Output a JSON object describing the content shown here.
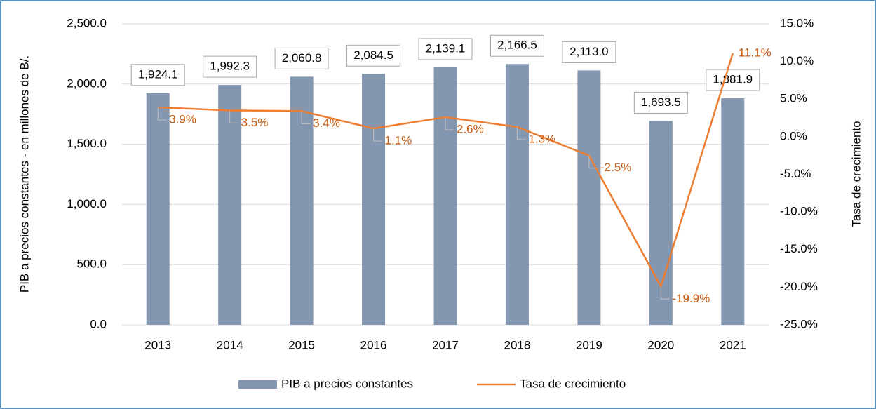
{
  "chart_data": {
    "type": "bar",
    "categories": [
      "2013",
      "2014",
      "2015",
      "2016",
      "2017",
      "2018",
      "2019",
      "2020",
      "2021"
    ],
    "series": [
      {
        "name": "PIB a precios constantes",
        "type": "bar",
        "color": "#8497b0",
        "values": [
          1924.1,
          1992.3,
          2060.8,
          2084.5,
          2139.1,
          2166.5,
          2113.0,
          1693.5,
          1881.9
        ],
        "value_labels": [
          "1,924.1",
          "1,992.3",
          "2,060.8",
          "2,084.5",
          "2,139.1",
          "2,166.5",
          "2,113.0",
          "1,693.5",
          "1,881.9"
        ]
      },
      {
        "name": "Tasa de crecimiento",
        "type": "line",
        "axis": "y2",
        "color": "#ed7d31",
        "values": [
          3.9,
          3.5,
          3.4,
          1.1,
          2.6,
          1.3,
          -2.5,
          -19.9,
          11.1
        ],
        "value_labels": [
          "3.9%",
          "3.5%",
          "3.4%",
          "1.1%",
          "2.6%",
          "1.3%",
          "-2.5%",
          "-19.9%",
          "11.1%"
        ]
      }
    ],
    "ylabel": "PIB a precios constantes - en millones de B/.",
    "y2label": "Tasa de crecimiento",
    "ylim": [
      0,
      2500
    ],
    "yticks": [
      {
        "value": 0,
        "label": "0.0"
      },
      {
        "value": 500,
        "label": "500.0"
      },
      {
        "value": 1000,
        "label": "1,000.0"
      },
      {
        "value": 1500,
        "label": "1,500.0"
      },
      {
        "value": 2000,
        "label": "2,000.0"
      },
      {
        "value": 2500,
        "label": "2,500.0"
      }
    ],
    "y2lim": [
      -25,
      15
    ],
    "y2ticks": [
      {
        "value": -25,
        "label": "-25.0%"
      },
      {
        "value": -20,
        "label": "-20.0%"
      },
      {
        "value": -15,
        "label": "-15.0%"
      },
      {
        "value": -10,
        "label": "-10.0%"
      },
      {
        "value": -5,
        "label": "-5.0%"
      },
      {
        "value": 0,
        "label": "0.0%"
      },
      {
        "value": 5,
        "label": "5.0%"
      },
      {
        "value": 10,
        "label": "10.0%"
      },
      {
        "value": 15,
        "label": "15.0%"
      }
    ],
    "grid": true,
    "legend": "bottom"
  }
}
